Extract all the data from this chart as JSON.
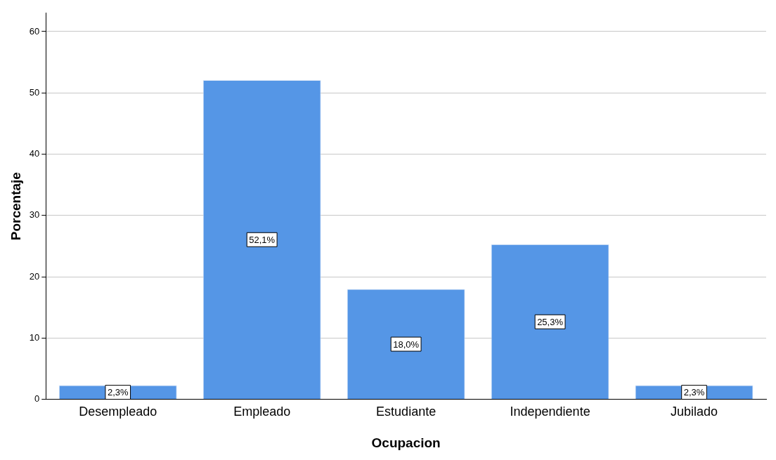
{
  "chart_data": {
    "type": "bar",
    "xlabel": "Ocupacion",
    "ylabel": "Porcentaje",
    "categories": [
      "Desempleado",
      "Empleado",
      "Estudiante",
      "Independiente",
      "Jubilado"
    ],
    "values": [
      2.3,
      52.1,
      18.0,
      25.3,
      2.3
    ],
    "value_labels": [
      "2,3%",
      "52,1%",
      "18,0%",
      "25,3%",
      "2,3%"
    ],
    "color": "#5596e6",
    "ylim": [
      0,
      63
    ],
    "yticks": [
      0,
      10,
      20,
      30,
      40,
      50,
      60
    ],
    "grid": "y",
    "legend": false
  }
}
